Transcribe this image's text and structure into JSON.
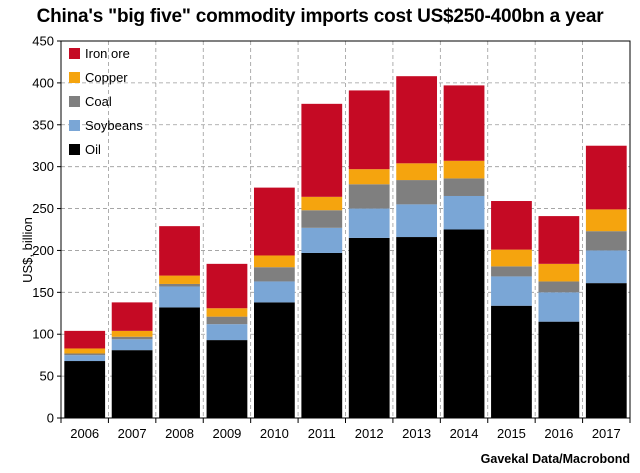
{
  "chart_data": {
    "type": "bar",
    "stacked": true,
    "title": "China's \"big five\" commodity imports cost US$250-400bn a year",
    "ylabel": "US$, billion",
    "xlabel": "",
    "ylim": [
      0,
      450
    ],
    "yticks": [
      0,
      50,
      100,
      150,
      200,
      250,
      300,
      350,
      400,
      450
    ],
    "grid": true,
    "legend_position": "top-left",
    "categories": [
      "2006",
      "2007",
      "2008",
      "2009",
      "2010",
      "2011",
      "2012",
      "2013",
      "2014",
      "2015",
      "2016",
      "2017"
    ],
    "series": [
      {
        "name": "Oil",
        "color": "#000000",
        "values": [
          68,
          81,
          132,
          93,
          138,
          197,
          215,
          216,
          225,
          134,
          115,
          161
        ]
      },
      {
        "name": "Soybeans",
        "color": "#7aa6d6",
        "values": [
          7,
          13,
          25,
          19,
          25,
          30,
          35,
          39,
          40,
          35,
          35,
          39
        ]
      },
      {
        "name": "Coal",
        "color": "#7f7f7f",
        "values": [
          2,
          3,
          3,
          9,
          17,
          21,
          29,
          29,
          21,
          12,
          13,
          23
        ]
      },
      {
        "name": "Copper",
        "color": "#f5a40e",
        "values": [
          6,
          7,
          10,
          10,
          14,
          16,
          18,
          20,
          21,
          20,
          21,
          26
        ]
      },
      {
        "name": "Iron ore",
        "color": "#c50a24",
        "values": [
          21,
          34,
          59,
          53,
          81,
          111,
          94,
          104,
          90,
          58,
          57,
          76
        ]
      }
    ]
  },
  "source": "Gavekal Data/Macrobond"
}
